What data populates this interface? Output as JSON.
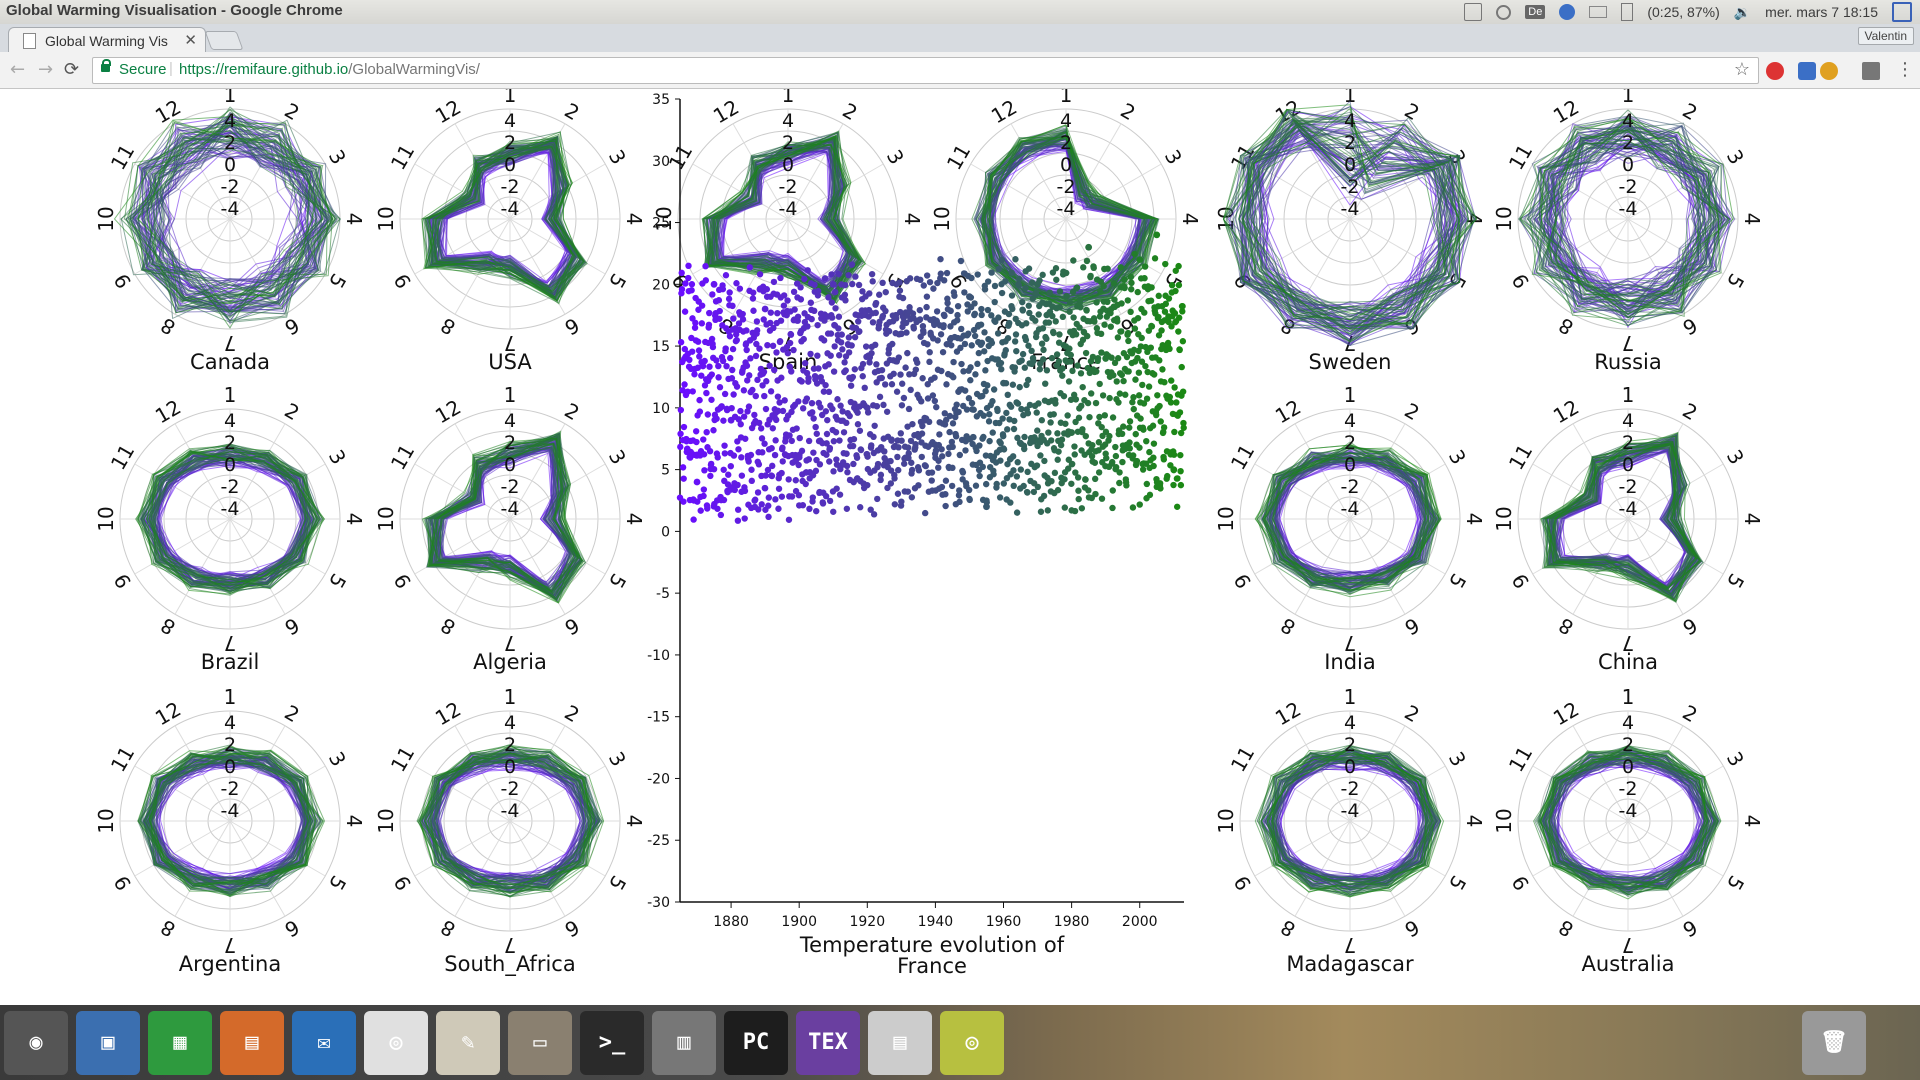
{
  "window": {
    "title": "Global Warming Visualisation - Google Chrome",
    "indicators": {
      "battery": "(0:25, 87%)",
      "clock": "mer. mars  7 18:15",
      "keyboard": "De"
    }
  },
  "browser": {
    "tab_title": "Global Warming Vis",
    "user": "Valentin",
    "secure_label": "Secure",
    "url_host": "https://remifaure.github.io",
    "url_path": "/GlobalWarmingVis/"
  },
  "radar": {
    "month_labels": [
      "1",
      "2",
      "3",
      "4",
      "5",
      "6",
      "7",
      "8",
      "9",
      "10",
      "11",
      "12"
    ],
    "ring_labels": [
      "4",
      "2",
      "0",
      "-2",
      "-4"
    ],
    "countries": [
      "Canada",
      "USA",
      "Spain",
      "France",
      "Sweden",
      "Russia",
      "Brazil",
      "Algeria",
      "India",
      "China",
      "Argentina",
      "South_Africa",
      "Madagascar",
      "Australia"
    ]
  },
  "chart_data": {
    "type": "scatter",
    "title": "Temperature evolution of France",
    "title_lines": [
      "Temperature evolution of",
      "France"
    ],
    "xlabel": "",
    "ylabel": "",
    "xlim": [
      1865,
      2013
    ],
    "ylim": [
      -30,
      35
    ],
    "xticks": [
      1880,
      1900,
      1920,
      1940,
      1960,
      1980,
      2000
    ],
    "yticks": [
      35,
      30,
      25,
      20,
      15,
      10,
      5,
      0,
      -5,
      -10,
      -15,
      -20,
      -25,
      -30
    ],
    "color_start": "#6a0dff",
    "color_end": "#1a8a12",
    "points_description": "monthly mean temperatures 1865-2013, ranging ~2 to ~24 °C",
    "sample_points": [
      {
        "x": 1870,
        "y": 4
      },
      {
        "x": 1875,
        "y": 20
      },
      {
        "x": 1880,
        "y": 9
      },
      {
        "x": 1890,
        "y": 18
      },
      {
        "x": 1900,
        "y": 6
      },
      {
        "x": 1910,
        "y": 20
      },
      {
        "x": 1920,
        "y": 10
      },
      {
        "x": 1930,
        "y": 16
      },
      {
        "x": 1940,
        "y": 7
      },
      {
        "x": 1950,
        "y": 19
      },
      {
        "x": 1955,
        "y": 2
      },
      {
        "x": 1960,
        "y": 12
      },
      {
        "x": 1970,
        "y": 20
      },
      {
        "x": 1980,
        "y": 8
      },
      {
        "x": 1985,
        "y": 23
      },
      {
        "x": 1990,
        "y": 14
      },
      {
        "x": 2000,
        "y": 22
      },
      {
        "x": 2005,
        "y": 24
      },
      {
        "x": 2010,
        "y": 5
      }
    ]
  },
  "dock": [
    "dash",
    "impress-image",
    "calc",
    "impress",
    "thunderbird",
    "chrome",
    "text-editor",
    "files",
    "terminal",
    "mixer",
    "pycharm",
    "texmaker",
    "file-cabinet",
    "image-viewer",
    "trash"
  ]
}
